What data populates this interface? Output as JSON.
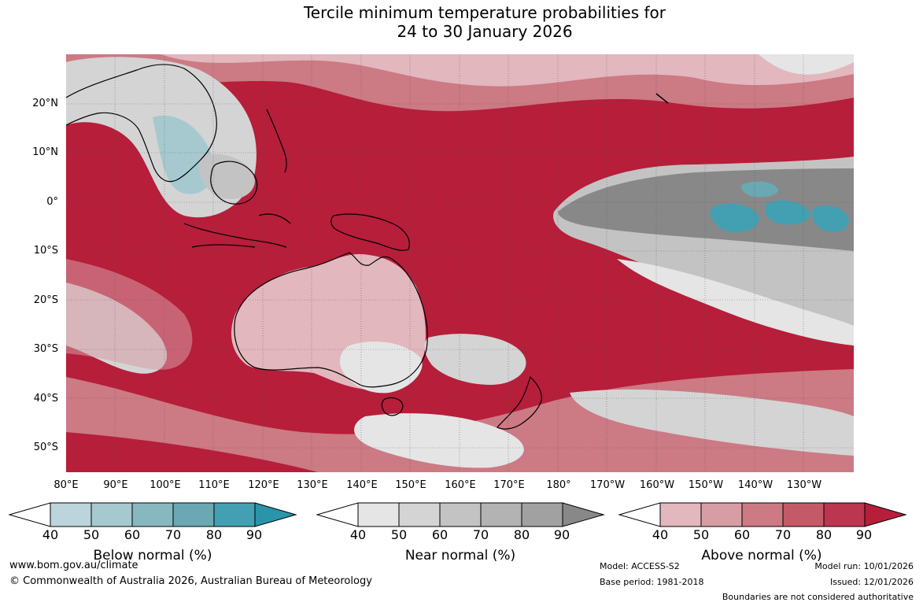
{
  "title": {
    "line1": "Tercile minimum temperature probabilities for",
    "line2": "24 to 30 January 2026"
  },
  "map": {
    "lat_labels": [
      "20°N",
      "10°N",
      "0°",
      "10°S",
      "20°S",
      "30°S",
      "40°S",
      "50°S"
    ],
    "lon_labels": [
      "80°E",
      "90°E",
      "100°E",
      "110°E",
      "120°E",
      "130°E",
      "140°E",
      "150°E",
      "160°E",
      "170°E",
      "180°",
      "170°W",
      "160°W",
      "150°W",
      "140°W",
      "130°W"
    ]
  },
  "colorbars": {
    "below": {
      "label": "Below normal (%)",
      "ticks": [
        "40",
        "50",
        "60",
        "70",
        "80",
        "90"
      ],
      "colors": [
        "#ffffff",
        "#bcd5dc",
        "#a5c9cf",
        "#88b8bf",
        "#6aa8b3",
        "#43a0b2",
        "#2a94aa"
      ]
    },
    "near": {
      "label": "Near normal (%)",
      "ticks": [
        "40",
        "50",
        "60",
        "70",
        "80",
        "90"
      ],
      "colors": [
        "#ffffff",
        "#e5e5e5",
        "#d4d4d4",
        "#c3c3c3",
        "#b3b3b3",
        "#a1a1a1",
        "#888888"
      ]
    },
    "above": {
      "label": "Above normal (%)",
      "ticks": [
        "40",
        "50",
        "60",
        "70",
        "80",
        "90"
      ],
      "colors": [
        "#ffffff",
        "#e2b7bd",
        "#d79da5",
        "#cc7a84",
        "#c45a68",
        "#bc3650",
        "#b61e3a"
      ]
    }
  },
  "footer": {
    "website": "www.bom.gov.au/climate",
    "copyright": "© Commonwealth of Australia 2026, Australian Bureau of Meteorology",
    "model": "Model: ACCESS-S2",
    "base_period": "Base period: 1981-2018",
    "model_run": "Model run: 10/01/2026",
    "issued": "Issued: 12/01/2026",
    "boundaries": "Boundaries are not considered authoritative"
  }
}
